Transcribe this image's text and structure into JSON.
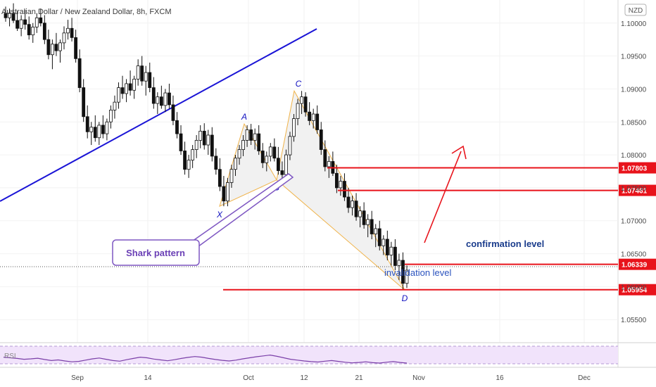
{
  "chart_data": {
    "type": "candlestick",
    "title": "Australian Dollar / New Zealand Dollar, 8h, FXCM",
    "currency_badge": "NZD",
    "x_tick_labels": [
      "Sep",
      "14",
      "Oct",
      "12",
      "21",
      "Nov",
      "16",
      "Dec"
    ],
    "y_axis": {
      "ylim": [
        1.0515,
        1.1035
      ],
      "tick_values": [
        1.055,
        1.06,
        1.065,
        1.07,
        1.075,
        1.08,
        1.085,
        1.09,
        1.095,
        1.1
      ],
      "tick_labels": [
        "1.05500",
        "1.06000",
        "1.06500",
        "1.07000",
        "1.07500",
        "1.08000",
        "1.08500",
        "1.09000",
        "1.09500",
        "1.10000"
      ]
    },
    "price_levels": [
      {
        "value": 1.07803,
        "label": "1.07803"
      },
      {
        "value": 1.07461,
        "label": "1.07461"
      },
      {
        "value": 1.06339,
        "label": "1.06339"
      },
      {
        "value": 1.05954,
        "label": "1.05954"
      }
    ],
    "pattern": {
      "name": "Shark pattern",
      "points": [
        {
          "label": "X",
          "date": "Sep 28",
          "price": 1.0722
        },
        {
          "label": "A",
          "date": "Oct 1",
          "price": 1.0847
        },
        {
          "label": "B",
          "date": "Oct 7",
          "price": 1.0762
        },
        {
          "label": "C",
          "date": "Oct 10",
          "price": 1.0897
        },
        {
          "label": "D",
          "date": "Oct 28",
          "price": 1.0595
        }
      ]
    },
    "annotations": {
      "confirmation": "confirmation level",
      "invalidation": "invalidation level"
    },
    "rsi_label": "RSI",
    "candles": [
      [
        1.1015,
        1.1025,
        1.1002,
        1.1008
      ],
      [
        1.1008,
        1.1022,
        1.0995,
        1.1015
      ],
      [
        1.1015,
        1.103,
        1.1,
        1.1004
      ],
      [
        1.1004,
        1.1018,
        1.0988,
        1.0992
      ],
      [
        1.0992,
        1.1012,
        1.098,
        1.1005
      ],
      [
        1.1005,
        1.102,
        1.099,
        1.0998
      ],
      [
        1.0998,
        1.101,
        1.0975,
        1.0982
      ],
      [
        1.0982,
        1.1,
        1.097,
        1.0994
      ],
      [
        1.0994,
        1.1015,
        1.0985,
        1.1008
      ],
      [
        1.1008,
        1.1022,
        1.0995,
        1.1
      ],
      [
        1.1,
        1.1012,
        1.0968,
        1.0975
      ],
      [
        1.0975,
        1.099,
        1.0945,
        1.0952
      ],
      [
        1.0952,
        1.0975,
        1.093,
        1.0968
      ],
      [
        1.0968,
        1.0985,
        1.095,
        1.0958
      ],
      [
        1.0958,
        1.0975,
        1.094,
        1.097
      ],
      [
        1.097,
        1.0995,
        1.096,
        1.0985
      ],
      [
        1.0985,
        1.1005,
        1.0975,
        1.0992
      ],
      [
        1.0992,
        1.1008,
        1.0972,
        1.0978
      ],
      [
        1.0978,
        1.099,
        1.094,
        1.0946
      ],
      [
        1.0946,
        1.096,
        1.0895,
        1.0902
      ],
      [
        1.0902,
        1.0915,
        1.085,
        1.0858
      ],
      [
        1.0858,
        1.0875,
        1.0825,
        1.0835
      ],
      [
        1.0835,
        1.085,
        1.0815,
        1.0842
      ],
      [
        1.0842,
        1.086,
        1.082,
        1.0826
      ],
      [
        1.0826,
        1.085,
        1.0815,
        1.0845
      ],
      [
        1.0845,
        1.086,
        1.0825,
        1.0832
      ],
      [
        1.0832,
        1.0855,
        1.0822,
        1.085
      ],
      [
        1.085,
        1.0875,
        1.084,
        1.0868
      ],
      [
        1.0868,
        1.089,
        1.0855,
        1.088
      ],
      [
        1.088,
        1.091,
        1.087,
        1.0902
      ],
      [
        1.0902,
        1.092,
        1.0885,
        1.0893
      ],
      [
        1.0893,
        1.0915,
        1.088,
        1.0908
      ],
      [
        1.0908,
        1.0928,
        1.089,
        1.0898
      ],
      [
        1.0898,
        1.092,
        1.0885,
        1.0915
      ],
      [
        1.0915,
        1.0945,
        1.0905,
        1.0935
      ],
      [
        1.0935,
        1.095,
        1.0905,
        1.0912
      ],
      [
        1.0912,
        1.0935,
        1.089,
        1.0925
      ],
      [
        1.0925,
        1.094,
        1.0895,
        1.0902
      ],
      [
        1.0902,
        1.0918,
        1.087,
        1.0878
      ],
      [
        1.0878,
        1.0895,
        1.0862,
        1.0888
      ],
      [
        1.0888,
        1.0905,
        1.087,
        1.0875
      ],
      [
        1.0875,
        1.09,
        1.0865,
        1.0894
      ],
      [
        1.0894,
        1.0908,
        1.087,
        1.0876
      ],
      [
        1.0876,
        1.089,
        1.0845,
        1.0852
      ],
      [
        1.0852,
        1.0865,
        1.0825,
        1.0832
      ],
      [
        1.0832,
        1.0845,
        1.08,
        1.0806
      ],
      [
        1.0806,
        1.082,
        1.077,
        1.0778
      ],
      [
        1.0778,
        1.08,
        1.0765,
        1.0792
      ],
      [
        1.0792,
        1.0815,
        1.078,
        1.0808
      ],
      [
        1.0808,
        1.083,
        1.0795,
        1.0822
      ],
      [
        1.0822,
        1.0845,
        1.081,
        1.0836
      ],
      [
        1.0836,
        1.0848,
        1.0808,
        1.0815
      ],
      [
        1.0815,
        1.0838,
        1.08,
        1.083
      ],
      [
        1.083,
        1.0842,
        1.079,
        1.0798
      ],
      [
        1.0798,
        1.081,
        1.077,
        1.0778
      ],
      [
        1.0778,
        1.0795,
        1.0745,
        1.0752
      ],
      [
        1.0752,
        1.0768,
        1.0722,
        1.073
      ],
      [
        1.073,
        1.0765,
        1.0722,
        1.0758
      ],
      [
        1.0758,
        1.0785,
        1.075,
        1.0778
      ],
      [
        1.0778,
        1.08,
        1.0768,
        1.0795
      ],
      [
        1.0795,
        1.0815,
        1.0785,
        1.0808
      ],
      [
        1.0808,
        1.083,
        1.0798,
        1.0822
      ],
      [
        1.0822,
        1.0845,
        1.0812,
        1.0838
      ],
      [
        1.0838,
        1.0847,
        1.0815,
        1.0822
      ],
      [
        1.0822,
        1.084,
        1.0808,
        1.0832
      ],
      [
        1.0832,
        1.0845,
        1.08,
        1.0806
      ],
      [
        1.0806,
        1.0818,
        1.078,
        1.0788
      ],
      [
        1.0788,
        1.0805,
        1.0775,
        1.0798
      ],
      [
        1.0798,
        1.0818,
        1.079,
        1.0812
      ],
      [
        1.0812,
        1.0825,
        1.079,
        1.0795
      ],
      [
        1.0795,
        1.0812,
        1.077,
        1.0776
      ],
      [
        1.0776,
        1.079,
        1.0762,
        1.077
      ],
      [
        1.077,
        1.0808,
        1.0765,
        1.08
      ],
      [
        1.08,
        1.0835,
        1.0792,
        1.0828
      ],
      [
        1.0828,
        1.0862,
        1.082,
        1.0855
      ],
      [
        1.0855,
        1.0885,
        1.0845,
        1.0878
      ],
      [
        1.0878,
        1.0897,
        1.0862,
        1.0888
      ],
      [
        1.0888,
        1.0895,
        1.0858,
        1.0865
      ],
      [
        1.0865,
        1.088,
        1.0845,
        1.0852
      ],
      [
        1.0852,
        1.087,
        1.084,
        1.0862
      ],
      [
        1.0862,
        1.0875,
        1.0832,
        1.0838
      ],
      [
        1.0838,
        1.085,
        1.08,
        1.0808
      ],
      [
        1.0808,
        1.0822,
        1.0775,
        1.0782
      ],
      [
        1.0782,
        1.0798,
        1.0765,
        1.079
      ],
      [
        1.079,
        1.0805,
        1.0768,
        1.0772
      ],
      [
        1.0772,
        1.0785,
        1.0742,
        1.075
      ],
      [
        1.075,
        1.0768,
        1.0738,
        1.076
      ],
      [
        1.076,
        1.0772,
        1.073,
        1.0736
      ],
      [
        1.0736,
        1.075,
        1.0712,
        1.072
      ],
      [
        1.072,
        1.0738,
        1.0708,
        1.073
      ],
      [
        1.073,
        1.0742,
        1.07,
        1.0706
      ],
      [
        1.0706,
        1.0722,
        1.069,
        1.0715
      ],
      [
        1.0715,
        1.0728,
        1.0688,
        1.0694
      ],
      [
        1.0694,
        1.071,
        1.0675,
        1.0702
      ],
      [
        1.0702,
        1.0715,
        1.0672,
        1.068
      ],
      [
        1.068,
        1.0695,
        1.066,
        1.0688
      ],
      [
        1.0688,
        1.07,
        1.0655,
        1.0662
      ],
      [
        1.0662,
        1.0678,
        1.0648,
        1.0672
      ],
      [
        1.0672,
        1.0685,
        1.064,
        1.0648
      ],
      [
        1.0648,
        1.0668,
        1.0632,
        1.066
      ],
      [
        1.066,
        1.0672,
        1.0625,
        1.0632
      ],
      [
        1.0632,
        1.065,
        1.061,
        1.064
      ],
      [
        1.064,
        1.0652,
        1.0595,
        1.0605
      ],
      [
        1.0605,
        1.0632,
        1.0598,
        1.0625
      ]
    ],
    "rsi": [
      58,
      55,
      52,
      48,
      50,
      53,
      47,
      42,
      45,
      40,
      36,
      38,
      44,
      50,
      54,
      48,
      42,
      39,
      46,
      52,
      58,
      55,
      49,
      45,
      41,
      46,
      52,
      57,
      61,
      58,
      52,
      47,
      43,
      40,
      44,
      50,
      55,
      60,
      64,
      68,
      62,
      55,
      48,
      44,
      40,
      37,
      35,
      39,
      42,
      38,
      34,
      31,
      33,
      36,
      32,
      30,
      34,
      37,
      33,
      30
    ],
    "grid": true
  }
}
